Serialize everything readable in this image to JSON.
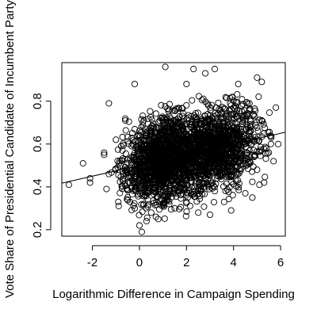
{
  "chart_data": {
    "type": "scatter",
    "title": "",
    "xlabel": "Logarithmic Difference in Campaign Spending",
    "ylabel": "Vote Share of Presidential Candidate of Incumbent Party",
    "xlim": [
      -3.3,
      6.2
    ],
    "ylim": [
      0.17,
      0.98
    ],
    "x_ticks": [
      -2,
      0,
      2,
      4,
      6
    ],
    "x_tick_labels": [
      "-2",
      "0",
      "2",
      "4",
      "6"
    ],
    "y_ticks": [
      0.2,
      0.4,
      0.6,
      0.8
    ],
    "y_tick_labels": [
      "0.2",
      "0.4",
      "0.6",
      "0.8"
    ],
    "grid": false,
    "legend": "none",
    "marker": "open-circle",
    "colors": {
      "points": "#000000",
      "line": "#000000",
      "background": "#ffffff"
    },
    "regression_line": {
      "intercept": 0.5,
      "slope": 0.025
    },
    "points": [
      [
        -3.0,
        0.41
      ],
      [
        -2.4,
        0.51
      ],
      [
        -2.1,
        0.42
      ],
      [
        -2.1,
        0.44
      ],
      [
        -1.5,
        0.56
      ],
      [
        -1.5,
        0.55
      ],
      [
        -1.4,
        0.39
      ],
      [
        -1.3,
        0.46
      ],
      [
        -1.3,
        0.79
      ],
      [
        -1.0,
        0.62
      ],
      [
        -0.9,
        0.33
      ],
      [
        -0.8,
        0.5
      ],
      [
        -0.6,
        0.71
      ],
      [
        -0.4,
        0.33
      ],
      [
        -0.2,
        0.88
      ],
      [
        -0.2,
        0.3
      ],
      [
        0.0,
        0.22
      ],
      [
        0.1,
        0.19
      ],
      [
        0.3,
        0.24
      ],
      [
        0.5,
        0.28
      ],
      [
        0.7,
        0.26
      ],
      [
        0.8,
        0.25
      ],
      [
        1.1,
        0.96
      ],
      [
        1.5,
        0.3
      ],
      [
        2.0,
        0.88
      ],
      [
        2.3,
        0.95
      ],
      [
        2.5,
        0.28
      ],
      [
        2.8,
        0.93
      ],
      [
        3.0,
        0.27
      ],
      [
        3.2,
        0.95
      ],
      [
        3.6,
        0.33
      ],
      [
        3.9,
        0.29
      ],
      [
        4.2,
        0.88
      ],
      [
        4.5,
        0.37
      ],
      [
        4.8,
        0.35
      ],
      [
        5.0,
        0.91
      ],
      [
        5.1,
        0.41
      ],
      [
        5.2,
        0.89
      ],
      [
        5.3,
        0.42
      ],
      [
        5.5,
        0.56
      ],
      [
        5.6,
        0.63
      ],
      [
        5.7,
        0.52
      ],
      [
        5.8,
        0.77
      ],
      [
        5.9,
        0.6
      ],
      [
        4.9,
        0.73
      ],
      [
        4.7,
        0.68
      ],
      [
        5.0,
        0.48
      ],
      [
        4.6,
        0.79
      ],
      [
        5.2,
        0.71
      ],
      [
        5.0,
        0.62
      ],
      [
        5.4,
        0.58
      ],
      [
        4.6,
        0.53
      ],
      [
        5.3,
        0.65
      ],
      [
        4.9,
        0.55
      ]
    ]
  }
}
